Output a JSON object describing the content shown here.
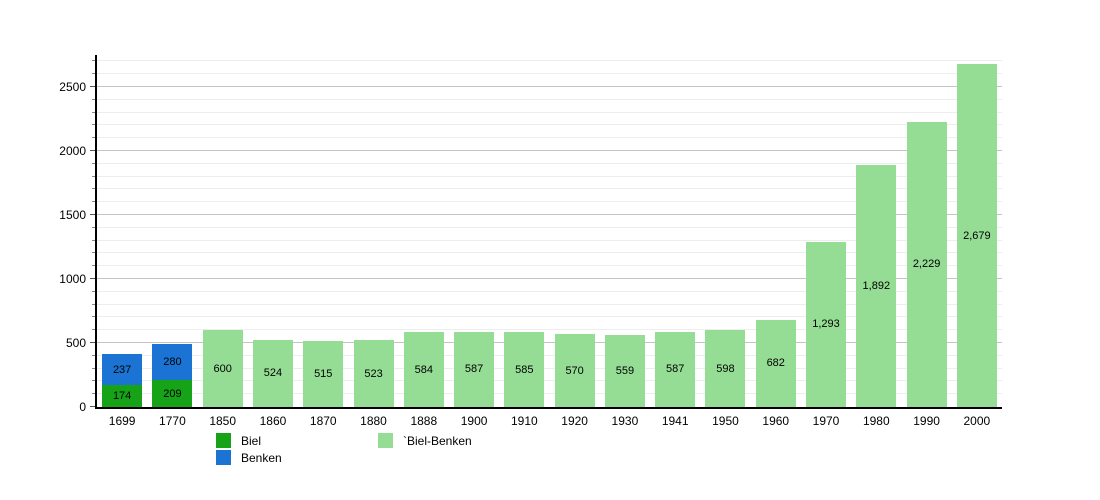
{
  "chart_data": {
    "type": "bar",
    "stacked": true,
    "title": "",
    "xlabel": "",
    "ylabel": "",
    "categories": [
      "1699",
      "1770",
      "1850",
      "1860",
      "1870",
      "1880",
      "1888",
      "1900",
      "1910",
      "1920",
      "1930",
      "1941",
      "1950",
      "1960",
      "1970",
      "1980",
      "1990",
      "2000"
    ],
    "series": [
      {
        "name": "Biel",
        "color": "#17a317",
        "values": [
          174,
          209,
          null,
          null,
          null,
          null,
          null,
          null,
          null,
          null,
          null,
          null,
          null,
          null,
          null,
          null,
          null,
          null
        ]
      },
      {
        "name": "Benken",
        "color": "#1b74d3",
        "values": [
          237,
          280,
          null,
          null,
          null,
          null,
          null,
          null,
          null,
          null,
          null,
          null,
          null,
          null,
          null,
          null,
          null,
          null
        ]
      },
      {
        "name": "Biel-Benken",
        "color": "#95dd95",
        "values": [
          null,
          null,
          600,
          524,
          515,
          523,
          584,
          587,
          585,
          570,
          559,
          587,
          598,
          682,
          1293,
          1892,
          2229,
          2679
        ]
      }
    ],
    "ylim": [
      0,
      2750
    ],
    "yticks": [
      0,
      500,
      1000,
      1500,
      2000,
      2500
    ],
    "minor_grid_step": 100,
    "grid": true,
    "legend_position": "bottom",
    "value_labels": "inside-center, thousands separated with comma"
  },
  "legend": {
    "items": [
      {
        "label": "Biel",
        "color": "#17a317"
      },
      {
        "label": "Benken",
        "color": "#1b74d3"
      },
      {
        "label": "`Biel-Benken",
        "color": "#95dd95"
      }
    ]
  },
  "colors": {
    "background": "#ffffff",
    "axis": "#000000",
    "grid_major": "#c4c4c4",
    "grid_minor": "#ededed",
    "bar_label": "#000000"
  }
}
